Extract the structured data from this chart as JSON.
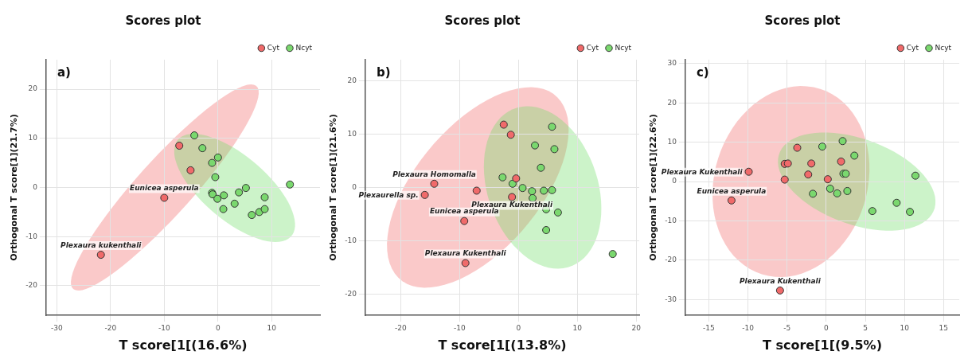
{
  "chart_data": [
    {
      "type": "scatter",
      "title": "Scores plot",
      "xlabel": "T score[1[(16.6%)",
      "ylabel": "Orthogonal T score[1](21.7%)",
      "xlim": [
        -32,
        19
      ],
      "ylim": [
        -26,
        26
      ],
      "xticks": [
        -30,
        -20,
        -10,
        0,
        10
      ],
      "yticks": [
        -20,
        -10,
        0,
        10,
        20
      ],
      "grid": true,
      "legend": "top right",
      "marker": "circle",
      "series": [
        {
          "name": "Cyt",
          "color": "#f06a6a",
          "x": [
            -7.2,
            -5.1,
            -10,
            -21.8
          ],
          "values": [
            8.5,
            3.5,
            -2.1,
            -13.7
          ]
        },
        {
          "name": "Ncyt",
          "color": "#7ad86e",
          "x": [
            -4.4,
            -2.9,
            0,
            -1.1,
            -0.5,
            -1.1,
            -1,
            -0.1,
            1.1,
            1,
            3.9,
            3.1,
            5.2,
            6.3,
            7.7,
            8.7,
            8.7,
            13.4
          ],
          "values": [
            10.6,
            8,
            6.1,
            5,
            2.1,
            -1.1,
            -1.4,
            -2.3,
            -1.6,
            -4.4,
            -1,
            -3.3,
            -0.1,
            -5.6,
            -5,
            -4.4,
            -2,
            0.6
          ]
        }
      ],
      "annotations": [
        "a)",
        {
          "text": "Eunicea asperula",
          "x": -10,
          "y": -2.1
        },
        {
          "text": "Plexaura kukenthali",
          "x": -21.8,
          "y": -13.7
        }
      ]
    },
    {
      "type": "scatter",
      "title": "Scores plot",
      "xlabel": "T score[1[(13.8%)",
      "ylabel": "Orthogonal T score[1](21.6%)",
      "xlim": [
        -26,
        20.5
      ],
      "ylim": [
        -24,
        24
      ],
      "xticks": [
        -20,
        -10,
        0,
        10,
        20
      ],
      "yticks": [
        -20,
        -10,
        0,
        10,
        20
      ],
      "grid": true,
      "legend": "top right",
      "marker": "circle",
      "series": [
        {
          "name": "Cyt",
          "color": "#f06a6a",
          "x": [
            -2.5,
            -1.3,
            -0.4,
            -14.3,
            -15.9,
            -7.1,
            -1.1,
            -9.2,
            -9
          ],
          "values": [
            11.8,
            9.9,
            1.7,
            0.7,
            -1.4,
            -0.6,
            -1.8,
            -6.3,
            -14.2
          ]
        },
        {
          "name": "Ncyt",
          "color": "#7ad86e",
          "x": [
            5.7,
            2.8,
            6.1,
            3.8,
            -2.7,
            -1,
            0.7,
            2.3,
            2.4,
            4.3,
            5.7,
            4.7,
            6.7,
            4.7,
            16
          ],
          "values": [
            11.4,
            7.9,
            7.2,
            3.7,
            1.9,
            0.7,
            -0.1,
            -0.7,
            -2,
            -0.6,
            -0.5,
            -4.1,
            -4.7,
            -8,
            -12.5
          ]
        }
      ],
      "annotations": [
        "b)",
        {
          "text": "Plexaura Homomalla",
          "x": -14.3,
          "y": 0.7
        },
        {
          "text": "Plexaurella sp.",
          "x": -15.9,
          "y": -1.4
        },
        {
          "text": "Plexaura Kukenthali",
          "x": -1.1,
          "y": -1.8
        },
        {
          "text": "Eunicea asperula",
          "x": -9.2,
          "y": -6.3
        },
        {
          "text": "Plexaura Kukenthali",
          "x": -9,
          "y": -14.2
        }
      ]
    },
    {
      "type": "scatter",
      "title": "Scores plot",
      "xlabel": "T score[1[(9.5%)",
      "ylabel": "Orthogonal T score[1](22.6%)",
      "xlim": [
        -18,
        17
      ],
      "ylim": [
        -34,
        31
      ],
      "xticks": [
        -15,
        -10,
        -5,
        0,
        5,
        10,
        15
      ],
      "yticks": [
        -30,
        -20,
        -10,
        0,
        10,
        20,
        30
      ],
      "grid": true,
      "legend": "top right",
      "marker": "circle",
      "series": [
        {
          "name": "Cyt",
          "color": "#f06a6a",
          "x": [
            -3.7,
            -5.3,
            -4.9,
            -1.9,
            1.9,
            -2.3,
            -5.3,
            0.2,
            -9.9,
            -12.1,
            -5.9
          ],
          "values": [
            8.6,
            4.5,
            4.6,
            4.6,
            5.1,
            1.8,
            0.5,
            0.6,
            2.5,
            -4.8,
            -27.7
          ]
        },
        {
          "name": "Ncyt",
          "color": "#7ad86e",
          "x": [
            2.1,
            -0.5,
            3.6,
            2.2,
            2.5,
            0.5,
            1.4,
            2.7,
            -1.7,
            11.4,
            9,
            10.7,
            5.9
          ],
          "values": [
            10.3,
            8.9,
            6.6,
            2,
            2,
            -1.8,
            -3,
            -2.4,
            -3.1,
            1.5,
            -5.4,
            -7.7,
            -7.5
          ]
        }
      ],
      "annotations": [
        "c)",
        {
          "text": "Plexaura Kukenthali",
          "x": -9.9,
          "y": 2.5
        },
        {
          "text": "Eunicea asperula",
          "x": -12.1,
          "y": -4.8
        },
        {
          "text": "Plexaura Kukenthali",
          "x": -5.9,
          "y": -27.7
        }
      ]
    }
  ]
}
